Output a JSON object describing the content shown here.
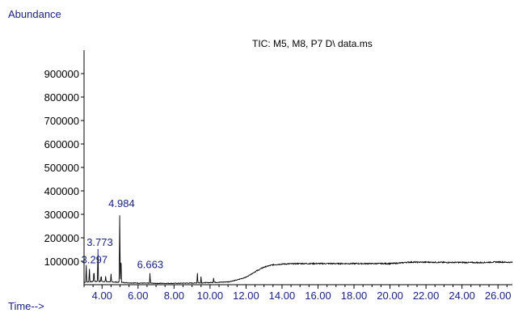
{
  "chart_data": {
    "type": "line",
    "title": "TIC: M5, M8, P7 D\\ data.ms",
    "ylabel": "Abundance",
    "xlabel": "Time-->",
    "xlim": [
      3.0,
      26.8
    ],
    "ylim": [
      0,
      1000000
    ],
    "y_ticks": [
      100000,
      200000,
      300000,
      400000,
      500000,
      600000,
      700000,
      800000,
      900000
    ],
    "y_tick_labels": [
      "100000",
      "200000",
      "300000",
      "400000",
      "500000",
      "600000",
      "700000",
      "800000",
      "900000"
    ],
    "x_ticks": [
      4,
      6,
      8,
      10,
      12,
      14,
      16,
      18,
      20,
      22,
      24,
      26
    ],
    "x_tick_labels": [
      "4.00",
      "6.00",
      "8.00",
      "10.00",
      "12.00",
      "14.00",
      "16.00",
      "18.00",
      "20.00",
      "22.00",
      "24.00",
      "26.00"
    ],
    "series_color": "#000000",
    "tick_label_color": "#1a237e",
    "baseline": [
      [
        3.0,
        10000
      ],
      [
        3.5,
        14000
      ],
      [
        4.0,
        14000
      ],
      [
        4.5,
        12000
      ],
      [
        5.0,
        10000
      ],
      [
        5.5,
        8000
      ],
      [
        6.0,
        7000
      ],
      [
        7.0,
        6000
      ],
      [
        8.0,
        6000
      ],
      [
        9.0,
        7000
      ],
      [
        10.0,
        9000
      ],
      [
        11.0,
        12000
      ],
      [
        11.5,
        20000
      ],
      [
        12.0,
        32000
      ],
      [
        12.5,
        55000
      ],
      [
        13.0,
        75000
      ],
      [
        13.5,
        85000
      ],
      [
        14.0,
        88000
      ],
      [
        15.0,
        90000
      ],
      [
        16.0,
        90000
      ],
      [
        17.0,
        90000
      ],
      [
        18.0,
        90000
      ],
      [
        19.0,
        90000
      ],
      [
        20.0,
        90000
      ],
      [
        20.5,
        92000
      ],
      [
        21.0,
        96000
      ],
      [
        22.0,
        96000
      ],
      [
        23.0,
        95000
      ],
      [
        24.0,
        95000
      ],
      [
        25.0,
        94000
      ],
      [
        26.0,
        97000
      ],
      [
        26.8,
        95000
      ]
    ],
    "peaks": [
      {
        "x": 3.12,
        "y": 85000
      },
      {
        "x": 3.297,
        "y": 70000,
        "label": "3.297"
      },
      {
        "x": 3.55,
        "y": 60000
      },
      {
        "x": 3.773,
        "y": 145000,
        "label": "3.773"
      },
      {
        "x": 3.95,
        "y": 40000
      },
      {
        "x": 4.2,
        "y": 35000
      },
      {
        "x": 4.5,
        "y": 45000
      },
      {
        "x": 4.984,
        "y": 310000,
        "label": "4.984"
      },
      {
        "x": 5.05,
        "y": 120000
      },
      {
        "x": 6.663,
        "y": 50000,
        "label": "6.663"
      },
      {
        "x": 9.3,
        "y": 50000
      },
      {
        "x": 9.5,
        "y": 35000
      },
      {
        "x": 10.2,
        "y": 30000
      }
    ]
  }
}
